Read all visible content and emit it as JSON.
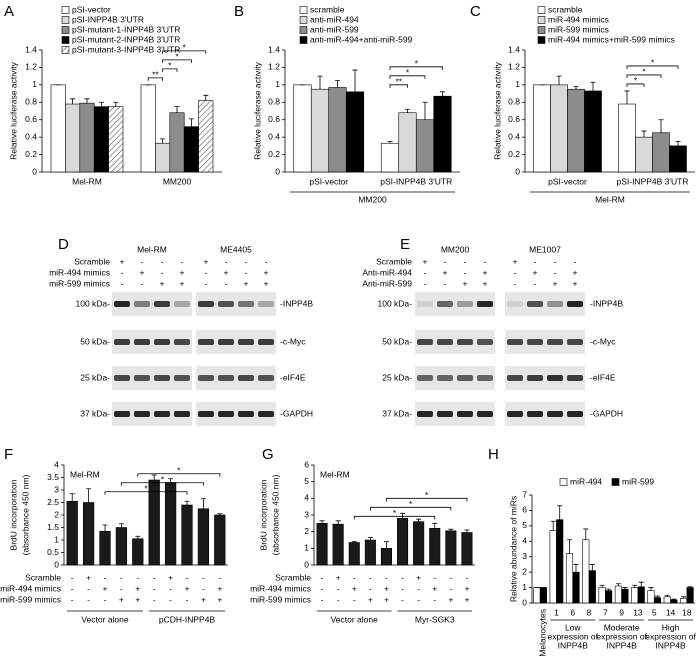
{
  "chart_data": [
    {
      "type": "bar",
      "panel": "A",
      "ylabel": "Relative luciferase activity",
      "ylim": [
        0,
        1.4
      ],
      "yticks": [
        0,
        0.2,
        0.4,
        0.6,
        0.8,
        1,
        1.2,
        1.4
      ],
      "categories": [
        "Mel-RM",
        "MM200"
      ],
      "series": [
        {
          "name": "pSI-vector",
          "color": "#ffffff",
          "values": [
            1,
            1
          ],
          "errors": [
            0,
            0
          ]
        },
        {
          "name": "pSI-INPP4B 3'UTR",
          "color": "#d9d9d9",
          "values": [
            0.78,
            0.33
          ],
          "errors": [
            0.06,
            0.05
          ]
        },
        {
          "name": "pSI-mutant-1-INPP4B 3'UTR",
          "color": "#8c8c8c",
          "values": [
            0.79,
            0.68
          ],
          "errors": [
            0.05,
            0.07
          ]
        },
        {
          "name": "pSI-mutant-2-INPP4B 3'UTR",
          "color": "#000000",
          "values": [
            0.75,
            0.52
          ],
          "errors": [
            0.05,
            0.09
          ]
        },
        {
          "name": "pSI-mutant-3-INPP4B 3'UTR",
          "color": "#ffffff",
          "hatch": true,
          "values": [
            0.75,
            0.82
          ],
          "errors": [
            0.05,
            0.06
          ]
        }
      ],
      "significance": [
        "**",
        "*",
        "*",
        "*"
      ]
    },
    {
      "type": "bar",
      "panel": "B",
      "ylabel": "Relative luciferase activity",
      "ylim": [
        0,
        1.4
      ],
      "yticks": [
        0,
        0.2,
        0.4,
        0.6,
        0.8,
        1,
        1.2,
        1.4
      ],
      "categories": [
        "pSI-vector",
        "pSI-INPP4B 3'UTR"
      ],
      "group_label": "MM200",
      "series": [
        {
          "name": "scramble",
          "color": "#ffffff",
          "values": [
            1,
            0.33
          ],
          "errors": [
            0,
            0.02
          ]
        },
        {
          "name": "anti-miR-494",
          "color": "#d9d9d9",
          "values": [
            0.95,
            0.68
          ],
          "errors": [
            0.15,
            0.04
          ]
        },
        {
          "name": "anti-miR-599",
          "color": "#8c8c8c",
          "values": [
            0.97,
            0.6
          ],
          "errors": [
            0.08,
            0.2
          ]
        },
        {
          "name": "anti-miR-494+anti-miR-599",
          "color": "#000000",
          "values": [
            0.92,
            0.87
          ],
          "errors": [
            0.25,
            0.05
          ]
        }
      ],
      "significance": [
        "**",
        "*",
        "*"
      ]
    },
    {
      "type": "bar",
      "panel": "C",
      "ylabel": "Relative luciferase activity",
      "ylim": [
        0,
        1.4
      ],
      "yticks": [
        0,
        0.2,
        0.4,
        0.6,
        0.8,
        1,
        1.2,
        1.4
      ],
      "categories": [
        "pSI-vector",
        "pSI-INPP4B 3'UTR"
      ],
      "group_label": "Mel-RM",
      "series": [
        {
          "name": "scramble",
          "color": "#ffffff",
          "values": [
            1,
            0.78
          ],
          "errors": [
            0,
            0.15
          ]
        },
        {
          "name": "miR-494 mimics",
          "color": "#d9d9d9",
          "values": [
            1,
            0.4
          ],
          "errors": [
            0.1,
            0.07
          ]
        },
        {
          "name": "miR-599 mimics",
          "color": "#8c8c8c",
          "values": [
            0.95,
            0.45
          ],
          "errors": [
            0.03,
            0.15
          ]
        },
        {
          "name": "miR-494 mimics+miR-599 mimics",
          "color": "#000000",
          "values": [
            0.93,
            0.3
          ],
          "errors": [
            0.1,
            0.05
          ]
        }
      ],
      "significance": [
        "*",
        "*",
        "*"
      ]
    },
    {
      "type": "bar",
      "panel": "F",
      "ylabel": [
        "BrdU incorporation",
        "(absorbance 450 nm)"
      ],
      "ylim": [
        0,
        4
      ],
      "yticks": [
        0,
        0.5,
        1,
        1.5,
        2,
        2.5,
        3,
        3.5,
        4
      ],
      "annotation": "Mel-RM",
      "color": "#1a1a1a",
      "values": [
        2.55,
        2.5,
        1.35,
        1.5,
        1.05,
        3.4,
        3.3,
        2.4,
        2.25,
        2.0
      ],
      "errors": [
        0.3,
        0.55,
        0.25,
        0.15,
        0.1,
        0.2,
        0.15,
        0.15,
        0.4,
        0.05
      ],
      "conditions": [
        {
          "name": "Scramble",
          "signs": [
            "-",
            "+",
            "-",
            "-",
            "-",
            "-",
            "+",
            "-",
            "-",
            "-"
          ]
        },
        {
          "name": "miR-494 mimics",
          "signs": [
            "-",
            "-",
            "+",
            "-",
            "+",
            "-",
            "-",
            "+",
            "-",
            "+"
          ]
        },
        {
          "name": "miR-599 mimics",
          "signs": [
            "-",
            "-",
            "-",
            "+",
            "+",
            "-",
            "-",
            "-",
            "+",
            "+"
          ]
        }
      ],
      "groups": [
        "Vector alone",
        "pCDH-INPP4B"
      ],
      "significance": [
        "*",
        "*",
        "*"
      ]
    },
    {
      "type": "bar",
      "panel": "G",
      "ylabel": [
        "BrdU incorporation",
        "(absorbance 450 nm)"
      ],
      "ylim": [
        0,
        6
      ],
      "yticks": [
        0,
        1,
        2,
        3,
        4,
        5,
        6
      ],
      "annotation": "Mel-RM",
      "color": "#1a1a1a",
      "values": [
        2.5,
        2.45,
        1.35,
        1.5,
        1.0,
        2.8,
        2.6,
        2.2,
        2.05,
        1.95
      ],
      "errors": [
        0.15,
        0.2,
        0.05,
        0.15,
        0.4,
        0.3,
        0.15,
        0.3,
        0.1,
        0.15
      ],
      "conditions": [
        {
          "name": "Scramble",
          "signs": [
            "-",
            "+",
            "-",
            "-",
            "-",
            "-",
            "+",
            "-",
            "-",
            "-"
          ]
        },
        {
          "name": "miR-494 mimics",
          "signs": [
            "-",
            "-",
            "+",
            "-",
            "+",
            "-",
            "-",
            "+",
            "-",
            "+"
          ]
        },
        {
          "name": "miR-599 mimics",
          "signs": [
            "-",
            "-",
            "-",
            "+",
            "+",
            "-",
            "-",
            "-",
            "+",
            "+"
          ]
        }
      ],
      "groups": [
        "Vector alone",
        "Myr-SGK3"
      ],
      "significance": [
        "*",
        "*",
        "*"
      ]
    },
    {
      "type": "bar",
      "panel": "H",
      "ylabel": "Relative abundance of miRs",
      "ylim": [
        0,
        7
      ],
      "yticks": [
        0,
        1,
        2,
        3,
        4,
        5,
        6,
        7
      ],
      "categories": [
        "Melanocytes",
        "1",
        "6",
        "8",
        "7",
        "9",
        "13",
        "5",
        "14",
        "18"
      ],
      "series": [
        {
          "name": "miR-494",
          "color": "#ffffff",
          "values": [
            1,
            4.7,
            3.2,
            4.1,
            1.0,
            1.1,
            1.0,
            0.8,
            0.4,
            0.3
          ],
          "errors": [
            0,
            0.6,
            0.9,
            0.7,
            0.15,
            0.15,
            0.15,
            0.2,
            0.1,
            0.1
          ]
        },
        {
          "name": "miR-599",
          "color": "#000000",
          "values": [
            1,
            5.4,
            2.0,
            2.1,
            0.8,
            0.9,
            1.05,
            0.35,
            0.2,
            1.0
          ],
          "errors": [
            0,
            0.9,
            0.5,
            0.4,
            0.1,
            0.1,
            0.3,
            0.1,
            0.05,
            0.05
          ]
        }
      ],
      "groups": [
        [
          "Low",
          "expression of",
          "INPP4B"
        ],
        [
          "Moderate",
          "expression of",
          "INPP4B"
        ],
        [
          "High",
          "expression of",
          "INPP4B"
        ]
      ]
    }
  ],
  "blots": [
    {
      "panel": "D",
      "cell_lines": [
        "Mel-RM",
        "ME4405"
      ],
      "conditions": [
        {
          "name": "Scramble",
          "signs": [
            "+",
            "-",
            "-",
            "-",
            "+",
            "-",
            "-",
            "-"
          ]
        },
        {
          "name": "miR-494 mimics",
          "signs": [
            "-",
            "+",
            "-",
            "+",
            "-",
            "+",
            "-",
            "+"
          ]
        },
        {
          "name": "miR-599 mimics",
          "signs": [
            "-",
            "-",
            "+",
            "+",
            "-",
            "-",
            "+",
            "+"
          ]
        }
      ],
      "markers": [
        "100 kDa-",
        "50 kDa-",
        "25 kDa-",
        "37 kDa-"
      ],
      "proteins": [
        "-INPP4B",
        "-c-Myc",
        "-eIF4E",
        "-GAPDH"
      ]
    },
    {
      "panel": "E",
      "cell_lines": [
        "MM200",
        "ME1007"
      ],
      "conditions": [
        {
          "name": "Scramble",
          "signs": [
            "+",
            "-",
            "-",
            "-",
            "+",
            "-",
            "-",
            "-"
          ]
        },
        {
          "name": "Anti-miR-494",
          "signs": [
            "-",
            "+",
            "-",
            "+",
            "-",
            "+",
            "-",
            "+"
          ]
        },
        {
          "name": "Anti-miR-599",
          "signs": [
            "-",
            "-",
            "+",
            "+",
            "-",
            "-",
            "+",
            "+"
          ]
        }
      ],
      "markers": [
        "100 kDa-",
        "50 kDa-",
        "25 kDa-",
        "37 kDa-"
      ],
      "proteins": [
        "-INPP4B",
        "-c-Myc",
        "-eIF4E",
        "-GAPDH"
      ]
    }
  ]
}
